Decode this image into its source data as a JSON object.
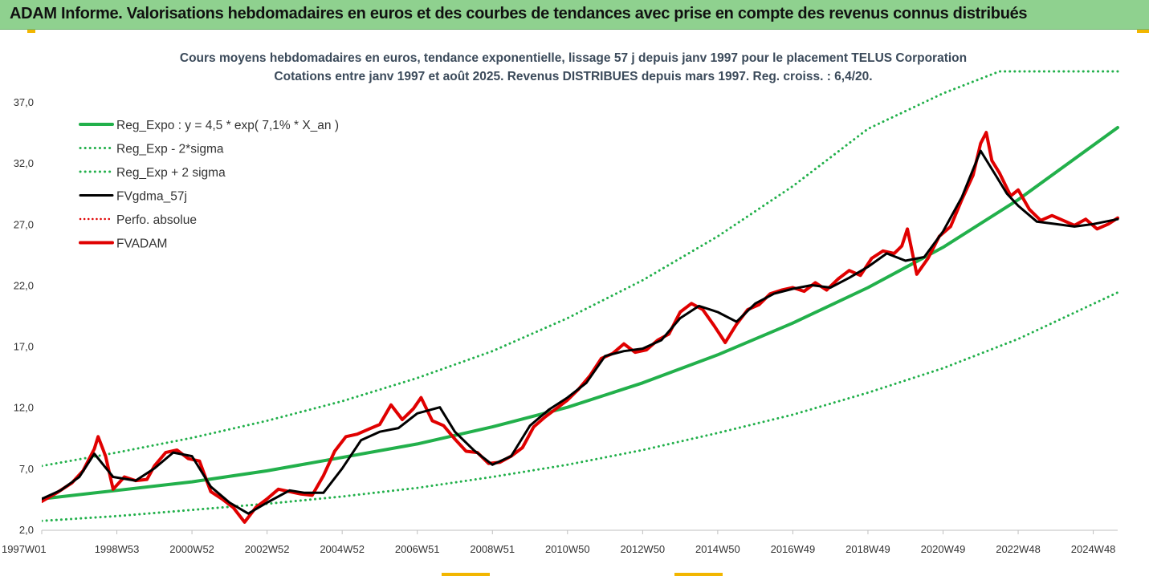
{
  "banner": {
    "title": "ADAM Informe. Valorisations hebdomadaires en euros et des courbes de tendances avec prise en compte des revenus connus distribués"
  },
  "colors": {
    "banner_bg": "#8fd18f",
    "trend": "#22b04b",
    "band": "#22b04b",
    "smoothed": "#000000",
    "perf": "#e00000",
    "fvadam": "#e00000",
    "accent": "#f2b600"
  },
  "chart_data": {
    "type": "line",
    "title": "Cours moyens hebdomadaires en euros, tendance exponentielle, lissage 57 j depuis janv 1997 pour le placement TELUS Corporation",
    "subtitle": "Cotations entre janv 1997 et août 2025. Revenus DISTRIBUES depuis mars 1997. Reg. croiss. : 6,4/20.",
    "xlabel": "",
    "ylabel": "",
    "ylim": [
      2.0,
      39.5
    ],
    "xlim": [
      1997.0,
      2025.65
    ],
    "y_ticks": [
      "2,0",
      "7,0",
      "12,0",
      "17,0",
      "22,0",
      "27,0",
      "32,0",
      "37,0"
    ],
    "y_tick_values": [
      2,
      7,
      12,
      17,
      22,
      27,
      32,
      37
    ],
    "x_ticks": [
      "1997W01",
      "1998W53",
      "2000W52",
      "2002W52",
      "2004W52",
      "2006W51",
      "2008W51",
      "2010W50",
      "2012W50",
      "2014W50",
      "2016W49",
      "2018W49",
      "2020W49",
      "2022W48",
      "2024W48"
    ],
    "x_tick_years": [
      1997.0,
      1999.0,
      2001.0,
      2003.0,
      2005.0,
      2007.0,
      2009.0,
      2011.0,
      2013.0,
      2015.0,
      2017.0,
      2019.0,
      2021.0,
      2023.0,
      2025.0
    ],
    "grid": false,
    "legend_position": "top-left",
    "legend": [
      {
        "label": "Reg_Expo : y = 4,5 * exp( 7,1% *  X_an )",
        "color": "#22b04b",
        "style": "solid",
        "width": 4
      },
      {
        "label": "Reg_Exp - 2*sigma",
        "color": "#22b04b",
        "style": "dotted",
        "width": 3
      },
      {
        "label": "Reg_Exp + 2 sigma",
        "color": "#22b04b",
        "style": "dotted",
        "width": 3
      },
      {
        "label": "FVgdma_57j",
        "color": "#000000",
        "style": "solid",
        "width": 3
      },
      {
        "label": "Perfo. absolue",
        "color": "#e00000",
        "style": "dotted",
        "width": 2.5
      },
      {
        "label": "FVADAM",
        "color": "#e00000",
        "style": "solid",
        "width": 4
      }
    ],
    "series": [
      {
        "name": "Reg_Expo : y = 4,5 * exp( 7,1% *  X_an )",
        "x": [
          1997.0,
          1999.0,
          2001.0,
          2003.0,
          2005.0,
          2007.0,
          2009.0,
          2011.0,
          2013.0,
          2015.0,
          2017.0,
          2019.0,
          2021.0,
          2023.0,
          2025.65
        ],
        "values": [
          4.5,
          5.2,
          5.9,
          6.8,
          7.9,
          9.0,
          10.4,
          12.0,
          14.0,
          16.3,
          18.9,
          21.8,
          25.1,
          29.0,
          34.9
        ]
      },
      {
        "name": "Reg_Exp - 2*sigma",
        "x": [
          1997.0,
          1999.0,
          2001.0,
          2003.0,
          2005.0,
          2007.0,
          2009.0,
          2011.0,
          2013.0,
          2015.0,
          2017.0,
          2019.0,
          2021.0,
          2023.0,
          2025.65
        ],
        "values": [
          2.7,
          3.1,
          3.6,
          4.1,
          4.7,
          5.4,
          6.3,
          7.3,
          8.5,
          9.9,
          11.4,
          13.2,
          15.2,
          17.6,
          21.4
        ]
      },
      {
        "name": "Reg_Exp + 2 sigma",
        "x": [
          1997.0,
          1999.0,
          2001.0,
          2003.0,
          2005.0,
          2007.0,
          2009.0,
          2011.0,
          2013.0,
          2015.0,
          2017.0,
          2019.0,
          2021.0,
          2022.5,
          2025.65
        ],
        "values": [
          7.2,
          8.3,
          9.5,
          10.9,
          12.5,
          14.4,
          16.6,
          19.3,
          22.4,
          26.0,
          30.1,
          34.8,
          37.7,
          39.5,
          39.5
        ]
      },
      {
        "name": "FVgdma_57j",
        "x": [
          1997.0,
          1997.5,
          1998.0,
          1998.4,
          1998.9,
          1999.5,
          2000.0,
          2000.5,
          2001.0,
          2001.5,
          2002.0,
          2002.5,
          2003.0,
          2003.6,
          2004.0,
          2004.5,
          2005.0,
          2005.5,
          2006.0,
          2006.5,
          2007.0,
          2007.6,
          2008.0,
          2008.5,
          2009.0,
          2009.5,
          2010.0,
          2010.5,
          2011.0,
          2011.5,
          2012.0,
          2012.5,
          2013.0,
          2013.5,
          2014.0,
          2014.5,
          2015.0,
          2015.5,
          2016.0,
          2016.5,
          2017.0,
          2017.5,
          2018.0,
          2018.5,
          2019.0,
          2019.5,
          2020.0,
          2020.5,
          2021.0,
          2021.5,
          2022.0,
          2022.4,
          2022.7,
          2023.0,
          2023.5,
          2024.0,
          2024.5,
          2025.0,
          2025.65
        ],
        "values": [
          4.5,
          5.2,
          6.3,
          8.2,
          6.3,
          6.0,
          7.0,
          8.3,
          8.0,
          5.5,
          4.2,
          3.3,
          4.2,
          5.2,
          5.0,
          5.0,
          7.0,
          9.3,
          10.0,
          10.3,
          11.5,
          12.0,
          10.0,
          8.5,
          7.3,
          8.0,
          10.5,
          11.8,
          12.8,
          14.0,
          16.2,
          16.6,
          16.8,
          17.5,
          19.3,
          20.3,
          19.8,
          19.0,
          20.5,
          21.3,
          21.7,
          22.0,
          21.8,
          22.6,
          23.5,
          24.6,
          24.0,
          24.3,
          26.4,
          29.2,
          33.0,
          31.0,
          29.5,
          28.5,
          27.2,
          27.0,
          26.8,
          27.0,
          27.4
        ]
      },
      {
        "name": "FVADAM",
        "x": [
          1997.0,
          1997.4,
          1997.8,
          1998.1,
          1998.4,
          1998.5,
          1998.7,
          1998.9,
          1999.2,
          1999.5,
          1999.8,
          2000.0,
          2000.3,
          2000.6,
          2000.9,
          2001.2,
          2001.5,
          2001.8,
          2002.1,
          2002.4,
          2002.7,
          2003.0,
          2003.3,
          2003.6,
          2003.9,
          2004.2,
          2004.5,
          2004.8,
          2005.1,
          2005.4,
          2005.7,
          2006.0,
          2006.3,
          2006.6,
          2006.9,
          2007.1,
          2007.4,
          2007.7,
          2008.0,
          2008.3,
          2008.6,
          2008.9,
          2009.2,
          2009.5,
          2009.8,
          2010.1,
          2010.4,
          2010.7,
          2011.0,
          2011.3,
          2011.6,
          2011.9,
          2012.2,
          2012.5,
          2012.8,
          2013.1,
          2013.4,
          2013.7,
          2014.0,
          2014.3,
          2014.6,
          2014.9,
          2015.2,
          2015.5,
          2015.8,
          2016.1,
          2016.4,
          2016.7,
          2017.0,
          2017.3,
          2017.6,
          2017.9,
          2018.2,
          2018.5,
          2018.8,
          2019.1,
          2019.4,
          2019.7,
          2019.9,
          2020.05,
          2020.3,
          2020.6,
          2020.9,
          2021.2,
          2021.5,
          2021.8,
          2022.0,
          2022.15,
          2022.3,
          2022.5,
          2022.8,
          2023.0,
          2023.3,
          2023.6,
          2023.9,
          2024.2,
          2024.5,
          2024.8,
          2025.1,
          2025.4,
          2025.65
        ],
        "values": [
          4.3,
          5.0,
          5.8,
          6.8,
          8.6,
          9.6,
          8.0,
          5.3,
          6.3,
          6.0,
          6.1,
          7.2,
          8.3,
          8.5,
          7.8,
          7.6,
          5.1,
          4.5,
          3.8,
          2.6,
          3.8,
          4.5,
          5.3,
          5.1,
          4.9,
          4.8,
          6.4,
          8.4,
          9.6,
          9.8,
          10.2,
          10.6,
          12.2,
          11.0,
          11.9,
          12.8,
          10.9,
          10.5,
          9.4,
          8.4,
          8.3,
          7.4,
          7.5,
          8.0,
          8.7,
          10.4,
          11.2,
          11.9,
          12.6,
          13.5,
          14.6,
          16.0,
          16.4,
          17.2,
          16.5,
          16.7,
          17.5,
          18.0,
          19.8,
          20.5,
          20.0,
          18.7,
          17.3,
          18.8,
          20.0,
          20.4,
          21.3,
          21.6,
          21.8,
          21.5,
          22.2,
          21.6,
          22.5,
          23.2,
          22.8,
          24.2,
          24.8,
          24.6,
          25.2,
          26.6,
          22.9,
          24.2,
          26.0,
          26.8,
          29.0,
          31.0,
          33.6,
          34.5,
          32.2,
          31.2,
          29.3,
          29.8,
          28.2,
          27.3,
          27.7,
          27.3,
          26.9,
          27.4,
          26.6,
          27.0,
          27.5
        ]
      }
    ]
  }
}
